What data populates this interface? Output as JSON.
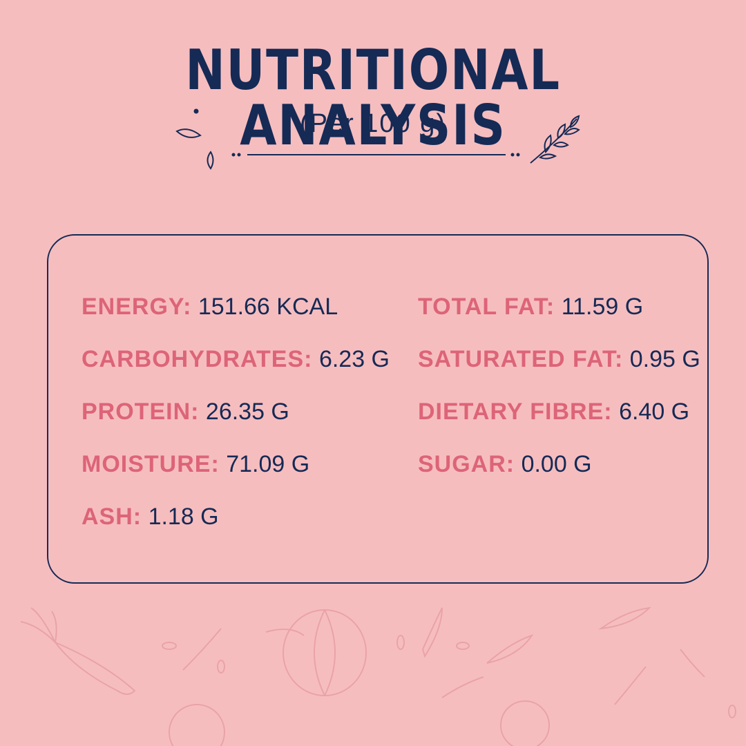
{
  "header": {
    "title": "NUTRITIONAL ANALYSIS",
    "subtitle": "(Per 100 g)"
  },
  "nutrients": {
    "energy": {
      "label": "ENERGY:",
      "value": "151.66 KCAL"
    },
    "carbohydrates": {
      "label": "CARBOHYDRATES:",
      "value": "6.23 G"
    },
    "protein": {
      "label": "PROTEIN:",
      "value": "26.35 G"
    },
    "moisture": {
      "label": "MOISTURE:",
      "value": "71.09 G"
    },
    "ash": {
      "label": "ASH:",
      "value": "1.18 G"
    },
    "total_fat": {
      "label": "TOTAL FAT:",
      "value": "11.59 G"
    },
    "saturated_fat": {
      "label": "SATURATED FAT:",
      "value": "0.95 G"
    },
    "dietary_fibre": {
      "label": "DIETARY FIBRE:",
      "value": "6.40 G"
    },
    "sugar": {
      "label": "SUGAR:",
      "value": "0.00 G"
    }
  },
  "colors": {
    "background": "#f6bdbf",
    "navy": "#152a55",
    "label_pink": "#dd6478"
  }
}
